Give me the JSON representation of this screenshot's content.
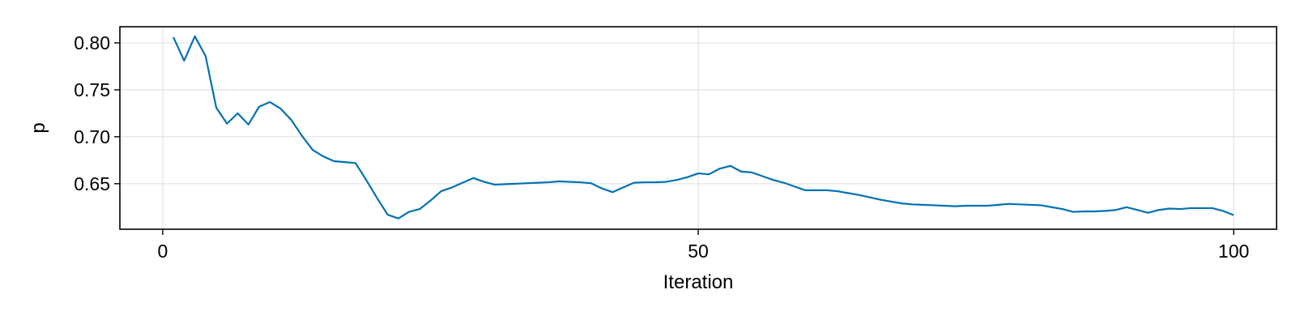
{
  "chart_data": {
    "type": "line",
    "title": "",
    "xlabel": "Iteration",
    "ylabel": "p",
    "xlim": [
      -4,
      104
    ],
    "ylim": [
      0.6015,
      0.8172
    ],
    "xticks": [
      0,
      50,
      100
    ],
    "xtick_labels": [
      "0",
      "50",
      "100"
    ],
    "yticks": [
      0.65,
      0.7,
      0.75,
      0.8
    ],
    "ytick_labels": [
      "0.65",
      "0.70",
      "0.75",
      "0.80"
    ],
    "grid": true,
    "legend": "none",
    "line_color": "#0072b2",
    "series": [
      {
        "x": [
          1,
          2,
          3,
          4,
          5,
          6,
          7,
          8,
          9,
          10,
          11,
          12,
          13,
          14,
          15,
          16,
          17,
          18,
          19,
          20,
          21,
          22,
          23,
          24,
          25,
          26,
          27,
          28,
          29,
          30,
          31,
          32,
          33,
          34,
          35,
          36,
          37,
          38,
          39,
          40,
          41,
          42,
          43,
          44,
          45,
          46,
          47,
          48,
          49,
          50,
          51,
          52,
          53,
          54,
          55,
          56,
          57,
          58,
          59,
          60,
          61,
          62,
          63,
          64,
          65,
          66,
          67,
          68,
          69,
          70,
          71,
          72,
          73,
          74,
          75,
          76,
          77,
          78,
          79,
          80,
          81,
          82,
          83,
          84,
          85,
          86,
          87,
          88,
          89,
          90,
          91,
          92,
          93,
          94,
          95,
          96,
          97,
          98,
          99,
          100
        ],
        "y": [
          0.806,
          0.781,
          0.807,
          0.786,
          0.731,
          0.714,
          0.725,
          0.713,
          0.732,
          0.737,
          0.73,
          0.718,
          0.701,
          0.686,
          0.679,
          0.674,
          0.673,
          0.672,
          0.654,
          0.635,
          0.617,
          0.613,
          0.62,
          0.623,
          0.632,
          0.642,
          0.646,
          0.651,
          0.656,
          0.652,
          0.649,
          0.6495,
          0.65,
          0.6505,
          0.651,
          0.6515,
          0.6525,
          0.652,
          0.6515,
          0.6505,
          0.645,
          0.641,
          0.646,
          0.651,
          0.6515,
          0.6515,
          0.652,
          0.654,
          0.657,
          0.661,
          0.66,
          0.666,
          0.669,
          0.663,
          0.662,
          0.658,
          0.654,
          0.651,
          0.647,
          0.643,
          0.643,
          0.643,
          0.642,
          0.64,
          0.638,
          0.6355,
          0.633,
          0.631,
          0.629,
          0.628,
          0.6275,
          0.627,
          0.6265,
          0.626,
          0.6265,
          0.6265,
          0.6265,
          0.6275,
          0.6285,
          0.628,
          0.6275,
          0.627,
          0.625,
          0.623,
          0.62,
          0.6205,
          0.6205,
          0.621,
          0.622,
          0.625,
          0.622,
          0.619,
          0.622,
          0.6235,
          0.623,
          0.624,
          0.624,
          0.624,
          0.621,
          0.6165
        ]
      }
    ]
  }
}
